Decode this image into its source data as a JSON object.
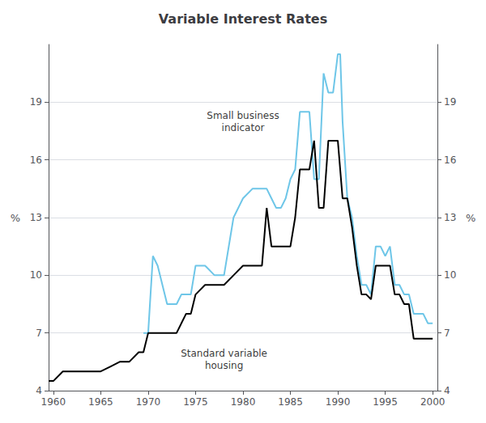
{
  "chart_data": {
    "type": "line",
    "title": "Variable Interest Rates",
    "ylabel": "%",
    "y2label": "%",
    "xlim": [
      1959.5,
      2000.5
    ],
    "xticks": [
      1960,
      1965,
      1970,
      1975,
      1980,
      1985,
      1990,
      1995,
      2000
    ],
    "ylim": [
      4,
      22
    ],
    "yticks": [
      4,
      7,
      10,
      13,
      16,
      19
    ],
    "y2lim": [
      4,
      22
    ],
    "y2ticks": [
      4,
      7,
      10,
      13,
      16,
      19
    ],
    "grid": "y",
    "series": [
      {
        "color": "#6ec6e8",
        "x": [
          1969.5,
          1970,
          1970.5,
          1971,
          1972,
          1973,
          1973.5,
          1974,
          1974.5,
          1975,
          1976,
          1977,
          1978,
          1979,
          1980,
          1981,
          1982,
          1982.5,
          1983,
          1983.5,
          1984,
          1984.5,
          1985,
          1985.5,
          1986,
          1986.5,
          1987,
          1987.5,
          1988,
          1988.5,
          1989,
          1989.5,
          1990,
          1990.25,
          1990.5,
          1991,
          1991.5,
          1992,
          1992.5,
          1993,
          1993.5,
          1994,
          1994.5,
          1995,
          1995.5,
          1996,
          1996.5,
          1997,
          1997.5,
          1998,
          1998.5,
          1999,
          1999.5,
          2000
        ],
        "values": [
          7.0,
          7.0,
          11.0,
          10.5,
          8.5,
          8.5,
          9.0,
          9.0,
          9.0,
          10.5,
          10.5,
          10.0,
          10.0,
          13.0,
          14.0,
          14.5,
          14.5,
          14.5,
          14.0,
          13.5,
          13.5,
          14.0,
          15.0,
          15.5,
          18.5,
          18.5,
          18.5,
          15.0,
          15.0,
          20.5,
          19.5,
          19.5,
          21.5,
          21.5,
          18.0,
          14.0,
          13.0,
          11.0,
          9.5,
          9.5,
          9.0,
          11.5,
          11.5,
          11.0,
          11.5,
          9.5,
          9.5,
          9.0,
          9.0,
          8.0,
          8.0,
          8.0,
          7.5,
          7.5
        ]
      },
      {
        "color": "#000000",
        "x": [
          1959.5,
          1960,
          1961,
          1962,
          1963,
          1964,
          1965,
          1966,
          1967,
          1968,
          1969,
          1969.5,
          1970,
          1970.5,
          1971,
          1972,
          1973,
          1973.5,
          1974,
          1974.5,
          1975,
          1976,
          1977,
          1978,
          1979,
          1980,
          1981,
          1982,
          1982.5,
          1983,
          1983.5,
          1984,
          1984.5,
          1985,
          1985.5,
          1986,
          1986.5,
          1987,
          1987.5,
          1988,
          1988.5,
          1989,
          1989.5,
          1990,
          1990.5,
          1991,
          1991.5,
          1992,
          1992.5,
          1993,
          1993.5,
          1994,
          1994.5,
          1995,
          1995.5,
          1996,
          1996.5,
          1997,
          1997.5,
          1998,
          1998.5,
          1999,
          1999.5,
          2000
        ],
        "values": [
          4.5,
          4.5,
          5.0,
          5.0,
          5.0,
          5.0,
          5.0,
          5.25,
          5.5,
          5.5,
          6.0,
          6.0,
          7.0,
          7.0,
          7.0,
          7.0,
          7.0,
          7.5,
          8.0,
          8.0,
          9.0,
          9.5,
          9.5,
          9.5,
          10.0,
          10.5,
          10.5,
          10.5,
          13.5,
          11.5,
          11.5,
          11.5,
          11.5,
          11.5,
          13.0,
          15.5,
          15.5,
          15.5,
          17.0,
          13.5,
          13.5,
          17.0,
          17.0,
          17.0,
          14.0,
          14.0,
          12.5,
          10.5,
          9.0,
          9.0,
          8.75,
          10.5,
          10.5,
          10.5,
          10.5,
          9.0,
          9.0,
          8.5,
          8.5,
          6.7,
          6.7,
          6.7,
          6.7,
          6.7
        ]
      }
    ],
    "annotations": [
      {
        "text": "Small business\nindicator",
        "x": 1980,
        "y": 18.0
      },
      {
        "text": "Standard variable\nhousing",
        "x": 1978,
        "y": 5.6
      }
    ]
  }
}
